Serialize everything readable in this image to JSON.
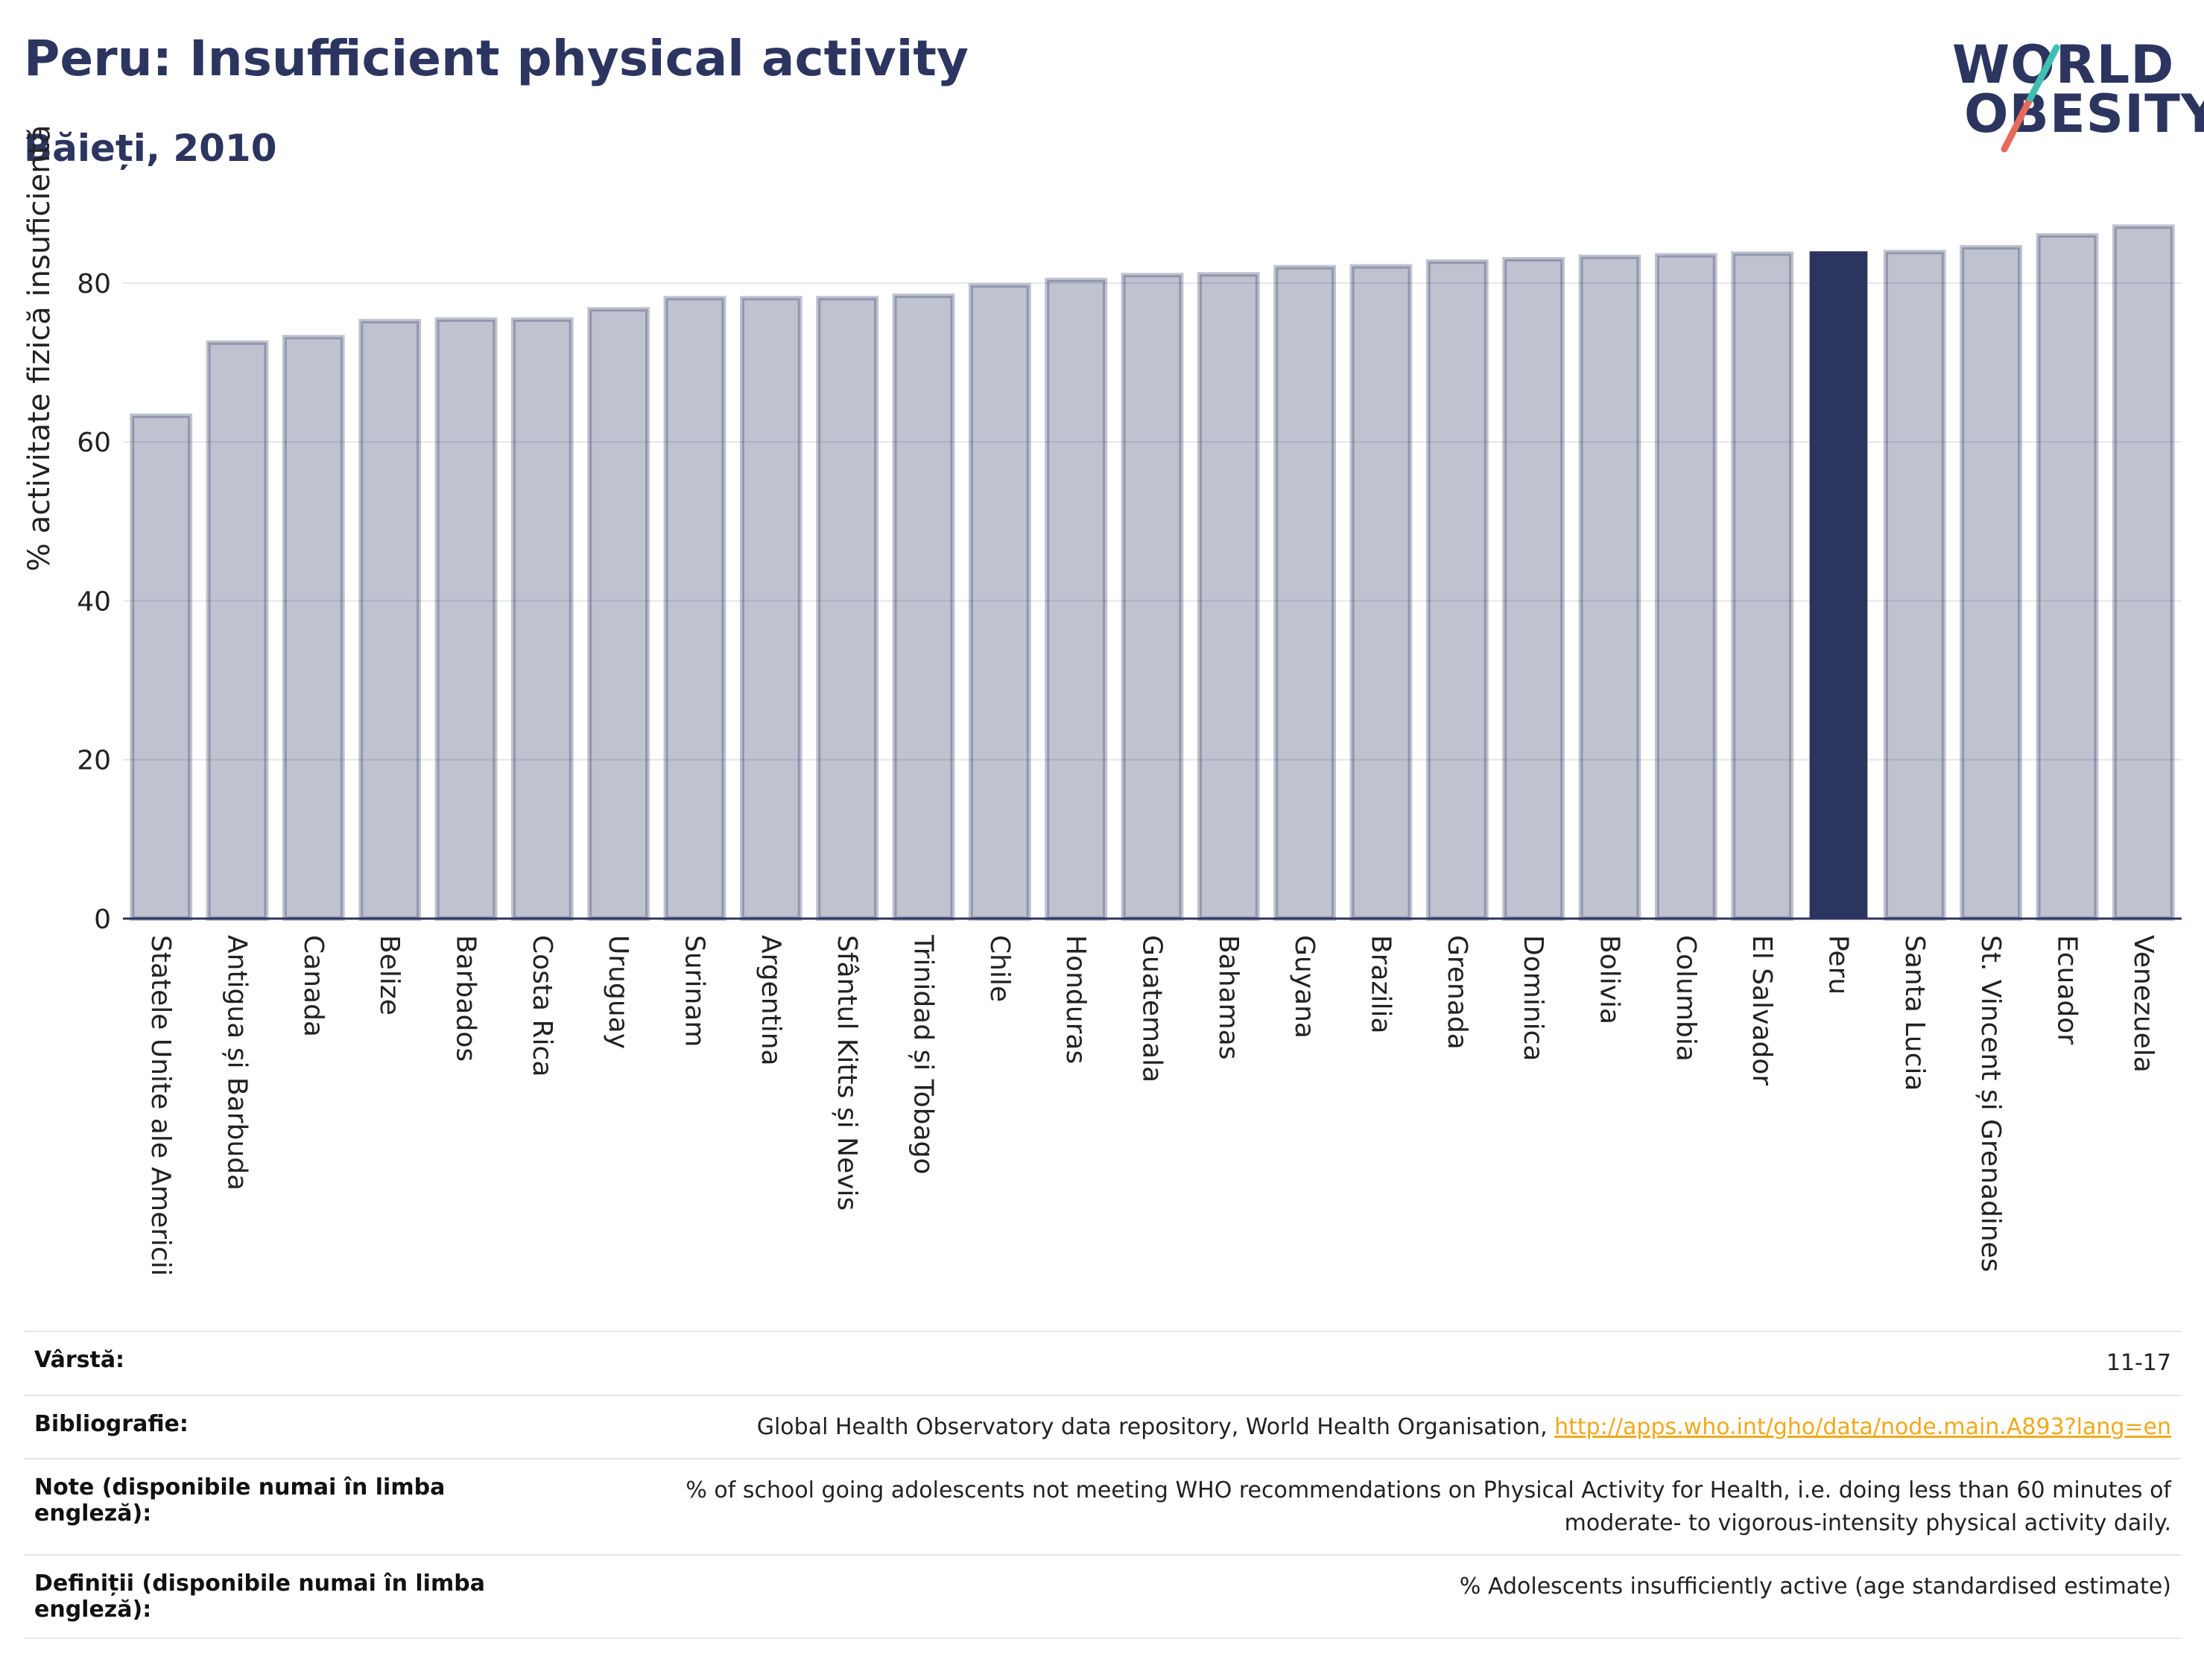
{
  "header": {
    "title": "Peru: Insufficient physical activity",
    "subtitle": "Băieți, 2010"
  },
  "logo": {
    "line1": "WORLD",
    "line2": "OBESITY",
    "colors": [
      "#2c3560",
      "#e86a5c",
      "#3fbfb0"
    ]
  },
  "chart_data": {
    "type": "bar",
    "title": "Peru: Insufficient physical activity",
    "subtitle": "Băieți, 2010",
    "ylabel": "% activitate fizică insuficientă",
    "xlabel": "",
    "ylim": [
      0,
      87.5
    ],
    "yticks": [
      0,
      20,
      40,
      60,
      80
    ],
    "grid": true,
    "highlight": "Peru",
    "colors": {
      "default": "#2c3560",
      "default_opacity": 0.3,
      "highlight": "#2c3560"
    },
    "categories": [
      "Statele Unite ale Americii",
      "Antigua și Barbuda",
      "Canada",
      "Belize",
      "Barbados",
      "Costa Rica",
      "Uruguay",
      "Surinam",
      "Argentina",
      "Sfântul Kitts și Nevis",
      "Trinidad și Tobago",
      "Chile",
      "Honduras",
      "Guatemala",
      "Bahamas",
      "Guyana",
      "Brazilia",
      "Grenada",
      "Dominica",
      "Bolivia",
      "Columbia",
      "El Salvador",
      "Peru",
      "Santa Lucia",
      "St. Vincent și Grenadines",
      "Ecuador",
      "Venezuela"
    ],
    "values": [
      63.3,
      72.5,
      73.2,
      75.2,
      75.4,
      75.4,
      76.7,
      78.1,
      78.1,
      78.1,
      78.4,
      79.7,
      80.4,
      81.0,
      81.1,
      82.0,
      82.1,
      82.7,
      83.0,
      83.3,
      83.5,
      83.7,
      84.0,
      83.9,
      84.5,
      86.0,
      87.1
    ]
  },
  "meta": {
    "age_label": "Vârstă:",
    "age_value": "11-17",
    "bib_label": "Bibliografie:",
    "bib_value": "Global Health Observatory data repository, World Health Organisation, ",
    "bib_link": "http://apps.who.int/gho/data/node.main.A893?lang=en",
    "notes_label": "Note (disponibile numai în limba engleză):",
    "notes_value": "% of school going adolescents not meeting WHO recommendations on Physical Activity for Health, i.e. doing less than 60 minutes of moderate- to vigorous-intensity physical activity daily.",
    "def_label": "Definiții (disponibile numai în limba engleză):",
    "def_value": "% Adolescents insufficiently active (age standardised estimate)"
  }
}
